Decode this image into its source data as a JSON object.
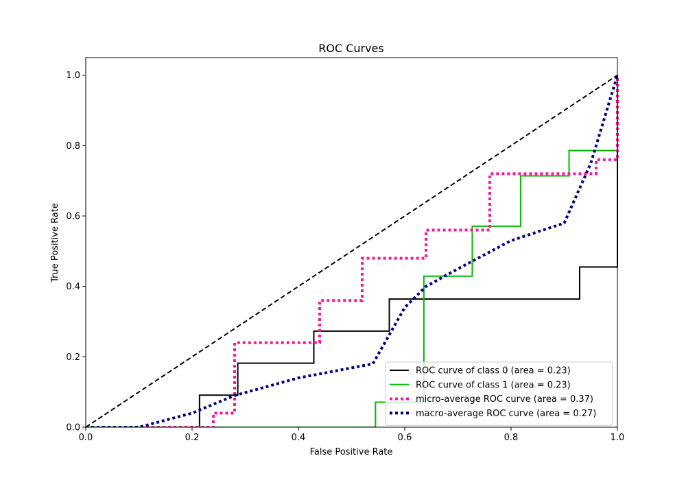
{
  "chart_data": {
    "type": "line",
    "title": "ROC Curves",
    "xlabel": "False Positive Rate",
    "ylabel": "True Positive Rate",
    "xlim": [
      0.0,
      1.0
    ],
    "ylim": [
      0.0,
      1.05
    ],
    "xticks": [
      0.0,
      0.2,
      0.4,
      0.6,
      0.8,
      1.0
    ],
    "yticks": [
      0.0,
      0.2,
      0.4,
      0.6,
      0.8,
      1.0
    ],
    "xtick_labels": [
      "0.0",
      "0.2",
      "0.4",
      "0.6",
      "0.8",
      "1.0"
    ],
    "ytick_labels": [
      "0.0",
      "0.2",
      "0.4",
      "0.6",
      "0.8",
      "1.0"
    ],
    "grid": false,
    "legend_position": "lower-right",
    "series": [
      {
        "name": "ROC curve of class 0 (area = 0.23)",
        "color": "#000000",
        "style": "solid",
        "x": [
          0.0,
          0.214,
          0.214,
          0.214,
          0.286,
          0.286,
          0.429,
          0.429,
          0.571,
          0.571,
          0.929,
          0.929,
          1.0,
          1.0
        ],
        "y": [
          0.0,
          0.0,
          0.091,
          0.091,
          0.091,
          0.182,
          0.182,
          0.273,
          0.273,
          0.364,
          0.364,
          0.455,
          0.455,
          1.0
        ]
      },
      {
        "name": "ROC curve of class 1 (area = 0.23)",
        "color": "#00bb00",
        "style": "solid",
        "x": [
          0.0,
          0.545,
          0.545,
          0.636,
          0.636,
          0.727,
          0.727,
          0.818,
          0.818,
          0.909,
          0.909,
          1.0,
          1.0
        ],
        "y": [
          0.0,
          0.0,
          0.071,
          0.071,
          0.429,
          0.429,
          0.571,
          0.571,
          0.714,
          0.714,
          0.786,
          0.786,
          1.0
        ]
      },
      {
        "name": "micro-average ROC curve (area = 0.37)",
        "color": "#ff1493",
        "style": "dotted",
        "x": [
          0.0,
          0.24,
          0.24,
          0.28,
          0.28,
          0.44,
          0.44,
          0.52,
          0.52,
          0.64,
          0.64,
          0.76,
          0.76,
          0.96,
          0.96,
          1.0,
          1.0
        ],
        "y": [
          0.0,
          0.0,
          0.04,
          0.04,
          0.24,
          0.24,
          0.36,
          0.36,
          0.48,
          0.48,
          0.56,
          0.56,
          0.72,
          0.72,
          0.76,
          0.76,
          1.0
        ]
      },
      {
        "name": "macro-average ROC curve (area = 0.27)",
        "color": "#000080",
        "style": "dotted",
        "x": [
          0.0,
          0.1,
          0.2,
          0.28,
          0.4,
          0.54,
          0.6,
          0.64,
          0.7,
          0.8,
          0.9,
          0.95,
          1.0
        ],
        "y": [
          0.0,
          0.0,
          0.04,
          0.09,
          0.14,
          0.18,
          0.34,
          0.4,
          0.45,
          0.53,
          0.58,
          0.75,
          1.0
        ]
      },
      {
        "color": "#000000",
        "style": "dashed",
        "x": [
          0.0,
          1.0
        ],
        "y": [
          0.0,
          1.0
        ]
      }
    ]
  }
}
